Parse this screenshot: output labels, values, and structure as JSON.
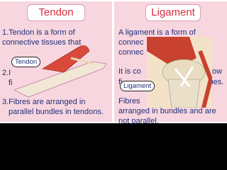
{
  "left": {
    "title": "Tendon",
    "lines": [
      "1.Tendon is a form of",
      "connective tissues that",
      "2.I",
      "fi",
      "3.Fibres are arranged in",
      "parallel bundles in tendons."
    ],
    "label": "Tendon"
  },
  "right": {
    "title": "Ligament",
    "lines": [
      "A ligament is a form of",
      "connec",
      "connec",
      "It is co",
      "ow",
      "fi",
      "sues.",
      "Fibres",
      "arranged in bundles and are",
      "not parallel."
    ],
    "label": "Ligament"
  }
}
